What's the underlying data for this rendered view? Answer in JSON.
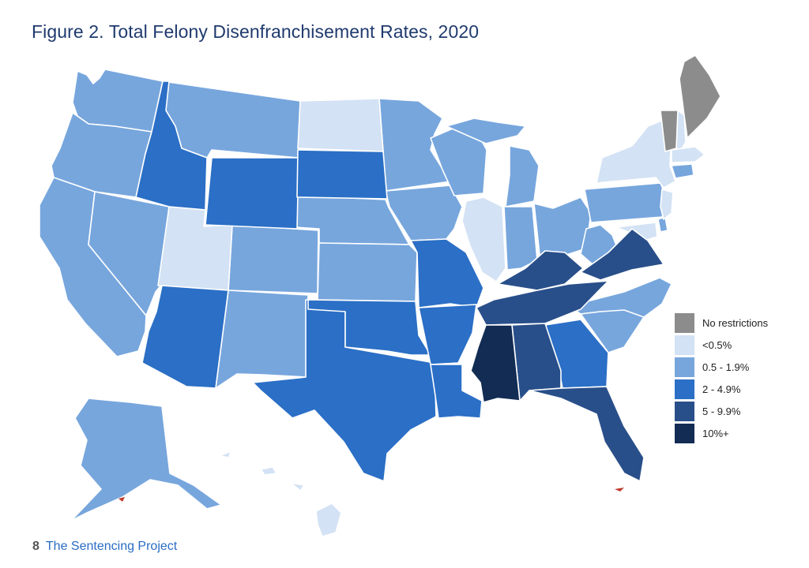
{
  "title": "Figure 2. Total Felony Disenfranchisement Rates, 2020",
  "legend": [
    {
      "label": "No restrictions",
      "color": "#8c8c8c"
    },
    {
      "label": "<0.5%",
      "color": "#d3e2f4"
    },
    {
      "label": "0.5 - 1.9%",
      "color": "#77a6dd"
    },
    {
      "label": "2 - 4.9%",
      "color": "#2b6fc6"
    },
    {
      "label": "5 - 9.9%",
      "color": "#294f8a"
    },
    {
      "label": "10%+",
      "color": "#122c54"
    }
  ],
  "footer": {
    "page_number": "8",
    "publisher": "The Sentencing Project"
  }
}
